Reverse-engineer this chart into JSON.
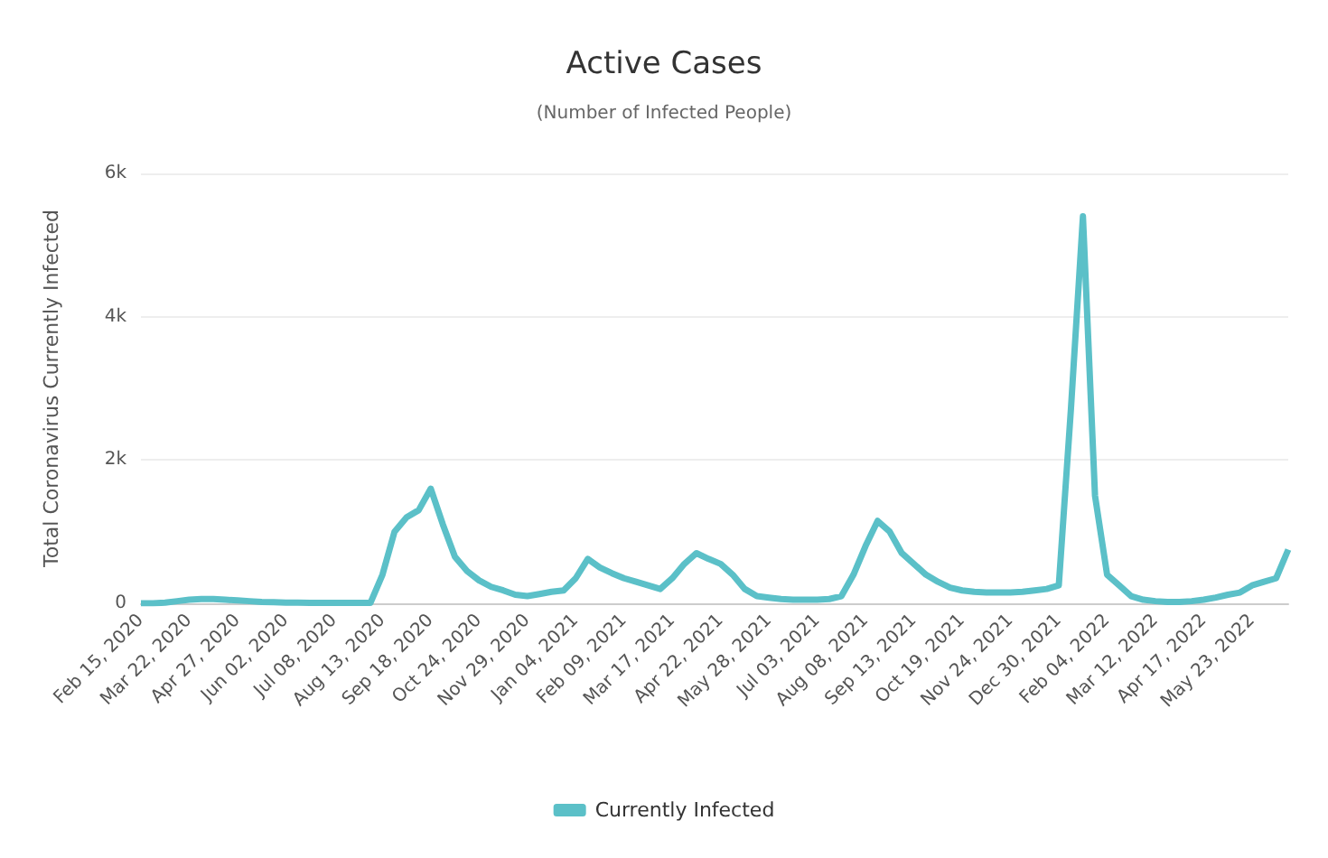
{
  "chart_data": {
    "type": "line",
    "title": "Active Cases",
    "subtitle": "(Number of Infected People)",
    "ylabel": "Total Coronavirus Currently Infected",
    "categories": [
      "Feb 15, 2020",
      null,
      null,
      null,
      "Mar 22, 2020",
      null,
      null,
      null,
      "Apr 27, 2020",
      null,
      null,
      null,
      "Jun 02, 2020",
      null,
      null,
      null,
      "Jul 08, 2020",
      null,
      null,
      null,
      "Aug 13, 2020",
      null,
      null,
      null,
      "Sep 18, 2020",
      null,
      null,
      null,
      "Oct 24, 2020",
      null,
      null,
      null,
      "Nov 29, 2020",
      null,
      null,
      null,
      "Jan 04, 2021",
      null,
      null,
      null,
      "Feb 09, 2021",
      null,
      null,
      null,
      "Mar 17, 2021",
      null,
      null,
      null,
      "Apr 22, 2021",
      null,
      null,
      null,
      "May 28, 2021",
      null,
      null,
      null,
      "Jul 03, 2021",
      null,
      null,
      null,
      "Aug 08, 2021",
      null,
      null,
      null,
      "Sep 13, 2021",
      null,
      null,
      null,
      "Oct 19, 2021",
      null,
      null,
      null,
      "Nov 24, 2021",
      null,
      null,
      null,
      "Dec 30, 2021",
      null,
      null,
      null,
      "Feb 04, 2022",
      null,
      null,
      null,
      "Mar 12, 2022",
      null,
      null,
      null,
      "Apr 17, 2022",
      null,
      null,
      null,
      "May 23, 2022",
      null,
      null,
      null
    ],
    "series": [
      {
        "name": "Currently Infected",
        "color": "#5bc0c8",
        "values": [
          0,
          0,
          10,
          30,
          50,
          60,
          60,
          50,
          40,
          30,
          20,
          15,
          10,
          10,
          5,
          5,
          5,
          5,
          5,
          5,
          400,
          1000,
          1200,
          1300,
          1600,
          1100,
          650,
          450,
          320,
          230,
          180,
          120,
          100,
          130,
          160,
          180,
          350,
          620,
          500,
          420,
          350,
          300,
          250,
          200,
          350,
          550,
          700,
          620,
          550,
          400,
          200,
          100,
          80,
          60,
          50,
          50,
          50,
          60,
          100,
          400,
          800,
          1150,
          1000,
          700,
          550,
          400,
          300,
          220,
          180,
          160,
          150,
          150,
          150,
          160,
          180,
          200,
          250,
          2700,
          5400,
          1500,
          400,
          250,
          100,
          50,
          30,
          20,
          20,
          30,
          50,
          80,
          120,
          150,
          250,
          300,
          350,
          750
        ]
      }
    ],
    "ylim": [
      0,
      6000
    ],
    "yticks": [
      0,
      {
        "value": 2000,
        "label": "2k"
      },
      {
        "value": 4000,
        "label": "4k"
      },
      {
        "value": 6000,
        "label": "6k"
      }
    ],
    "grid": "y",
    "legend": "bottom",
    "marker": "none",
    "line_style": "solid"
  }
}
